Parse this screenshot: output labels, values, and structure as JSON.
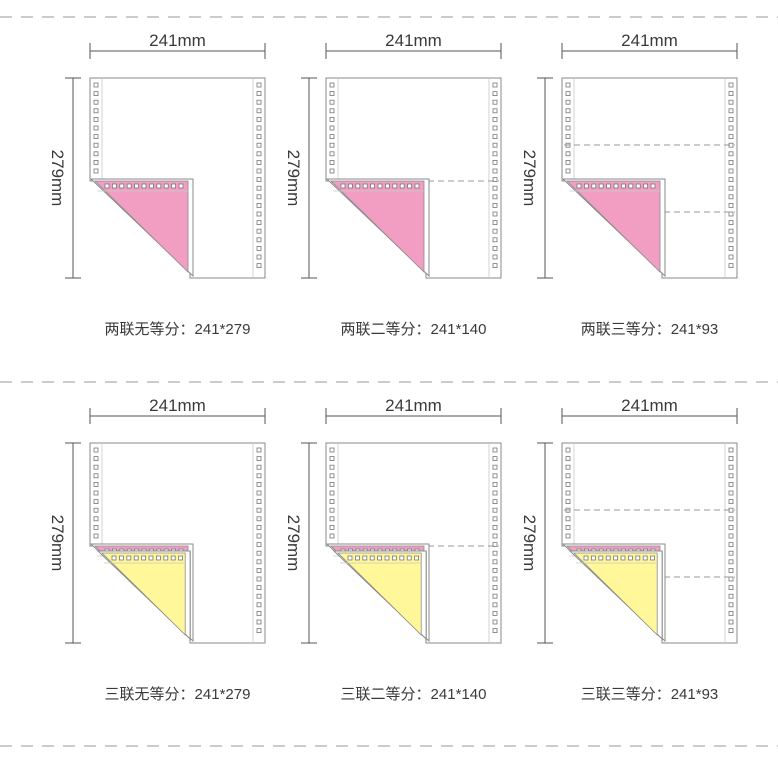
{
  "colors": {
    "line": "#555555",
    "paper_stroke": "#8a8a8a",
    "hole_stroke": "#777777",
    "divider": "#999999",
    "pink": "#f19ec2",
    "yellow": "#fff799"
  },
  "rows": [
    {
      "name": "two-ply",
      "plies": [
        "pink"
      ],
      "panels": [
        {
          "width_label": "241mm",
          "height_label": "279mm",
          "caption": "两联无等分：241*279",
          "equal_parts": 1
        },
        {
          "width_label": "241mm",
          "height_label": "279mm",
          "caption": "两联二等分：241*140",
          "equal_parts": 2
        },
        {
          "width_label": "241mm",
          "height_label": "279mm",
          "caption": "两联三等分：241*93",
          "equal_parts": 3
        }
      ]
    },
    {
      "name": "three-ply",
      "plies": [
        "pink",
        "yellow"
      ],
      "panels": [
        {
          "width_label": "241mm",
          "height_label": "279mm",
          "caption": "三联无等分：241*279",
          "equal_parts": 1
        },
        {
          "width_label": "241mm",
          "height_label": "279mm",
          "caption": "三联二等分：241*140",
          "equal_parts": 2
        },
        {
          "width_label": "241mm",
          "height_label": "279mm",
          "caption": "三联三等分：241*93",
          "equal_parts": 3
        }
      ]
    }
  ]
}
